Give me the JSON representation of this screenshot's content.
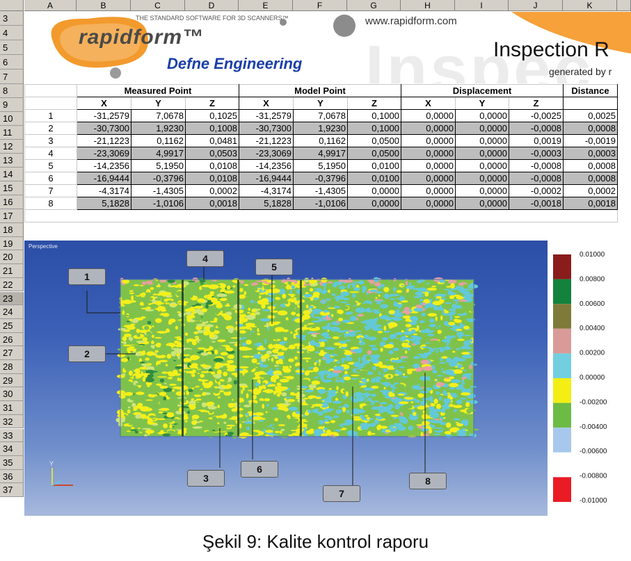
{
  "columns": [
    "A",
    "B",
    "C",
    "D",
    "E",
    "F",
    "G",
    "H",
    "I",
    "J",
    "K"
  ],
  "rows": [
    "3",
    "4",
    "5",
    "6",
    "7",
    "8",
    "9",
    "10",
    "11",
    "12",
    "13",
    "14",
    "15",
    "16",
    "17",
    "18",
    "19",
    "20",
    "21",
    "22",
    "23",
    "24",
    "25",
    "26",
    "27",
    "28",
    "29",
    "30",
    "31",
    "32",
    "33",
    "34",
    "35",
    "36",
    "37"
  ],
  "banner": {
    "tagline": "THE STANDARD SOFTWARE FOR 3D SCANNERS™",
    "logo": "rapidform™",
    "website": "www.rapidform.com",
    "company": "Defne Engineering",
    "title": "Inspection R",
    "generated": "generated by r",
    "watermark": "Inspec"
  },
  "table": {
    "group_headers": [
      "Measured Point",
      "Model Point",
      "Displacement",
      "Distance"
    ],
    "sub_headers": [
      "X",
      "Y",
      "Z",
      "X",
      "Y",
      "Z",
      "X",
      "Y",
      "Z"
    ],
    "rows": [
      [
        "1",
        "-31,2579",
        "7,0678",
        "0,1025",
        "-31,2579",
        "7,0678",
        "0,1000",
        "0,0000",
        "0,0000",
        "-0,0025",
        "0,0025"
      ],
      [
        "2",
        "-30,7300",
        "1,9230",
        "0,1008",
        "-30,7300",
        "1,9230",
        "0,1000",
        "0,0000",
        "0,0000",
        "-0,0008",
        "0,0008"
      ],
      [
        "3",
        "-21,1223",
        "0,1162",
        "0,0481",
        "-21,1223",
        "0,1162",
        "0,0500",
        "0,0000",
        "0,0000",
        "0,0019",
        "-0,0019"
      ],
      [
        "4",
        "-23,3069",
        "4,9917",
        "0,0503",
        "-23,3069",
        "4,9917",
        "0,0500",
        "0,0000",
        "0,0000",
        "-0,0003",
        "0,0003"
      ],
      [
        "5",
        "-14,2356",
        "5,1950",
        "0,0108",
        "-14,2356",
        "5,1950",
        "0,0100",
        "0,0000",
        "0,0000",
        "-0,0008",
        "0,0008"
      ],
      [
        "6",
        "-16,9444",
        "-0,3796",
        "0,0108",
        "-16,9444",
        "-0,3796",
        "0,0100",
        "0,0000",
        "0,0000",
        "-0,0008",
        "0,0008"
      ],
      [
        "7",
        "-4,3174",
        "-1,4305",
        "0,0002",
        "-4,3174",
        "-1,4305",
        "0,0000",
        "0,0000",
        "0,0000",
        "-0,0002",
        "0,0002"
      ],
      [
        "8",
        "5,1828",
        "-1,0106",
        "0,0018",
        "5,1828",
        "-1,0106",
        "0,0000",
        "0,0000",
        "0,0000",
        "-0,0018",
        "0,0018"
      ]
    ]
  },
  "viewport": {
    "label": "Perspective",
    "callouts": [
      "1",
      "2",
      "3",
      "4",
      "5",
      "6",
      "7",
      "8"
    ],
    "colors": [
      "#cde57a",
      "#f4ef1a",
      "#7fc24b",
      "#63c9d9",
      "#e6a0a0",
      "#2f8d42",
      "#6b6b35"
    ]
  },
  "legend": {
    "labels": [
      "0.01000",
      "0.00800",
      "0.00600",
      "0.00400",
      "0.00200",
      "0.00000",
      "-0.00200",
      "-0.00400",
      "-0.00600",
      "-0.00800",
      "-0.01000"
    ],
    "colors": [
      "#8a1c1c",
      "#13823c",
      "#7e7a3a",
      "#d99b98",
      "#72cfe0",
      "#f3ee13",
      "#6cbb45",
      "#a7c8ec",
      "#ffffff",
      "#ea1b25"
    ]
  },
  "caption": "Şekil 9: Kalite kontrol raporu"
}
